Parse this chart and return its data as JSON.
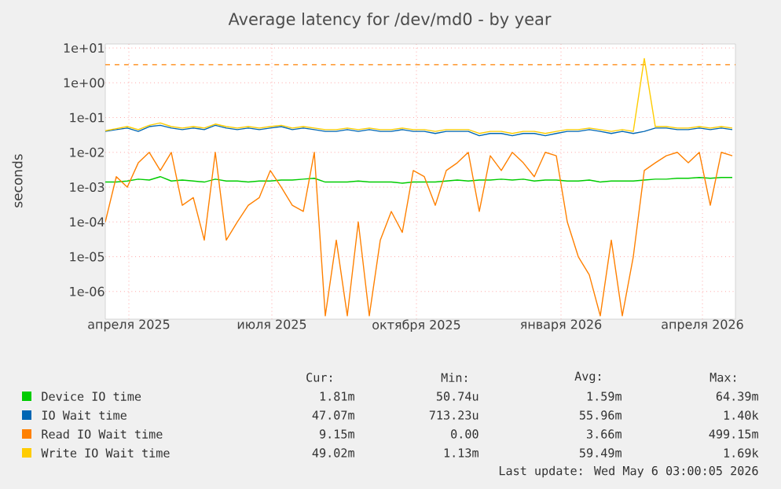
{
  "chart_data": {
    "type": "line",
    "title": "Average latency for /dev/md0 - by year",
    "ylabel": "seconds",
    "x": [
      "2025-03-17",
      "2025-03-24",
      "2025-03-31",
      "2025-04-07",
      "2025-04-14",
      "2025-04-21",
      "2025-04-28",
      "2025-05-05",
      "2025-05-12",
      "2025-05-19",
      "2025-05-26",
      "2025-06-02",
      "2025-06-09",
      "2025-06-16",
      "2025-06-23",
      "2025-06-30",
      "2025-07-07",
      "2025-07-14",
      "2025-07-21",
      "2025-07-28",
      "2025-08-04",
      "2025-08-11",
      "2025-08-18",
      "2025-08-25",
      "2025-09-01",
      "2025-09-08",
      "2025-09-15",
      "2025-09-22",
      "2025-09-29",
      "2025-10-06",
      "2025-10-13",
      "2025-10-20",
      "2025-10-27",
      "2025-11-03",
      "2025-11-10",
      "2025-11-17",
      "2025-11-24",
      "2025-12-01",
      "2025-12-08",
      "2025-12-15",
      "2025-12-22",
      "2025-12-29",
      "2026-01-05",
      "2026-01-12",
      "2026-01-19",
      "2026-01-26",
      "2026-02-02",
      "2026-02-09",
      "2026-02-16",
      "2026-02-23",
      "2026-03-02",
      "2026-03-09",
      "2026-03-16",
      "2026-03-23",
      "2026-03-30",
      "2026-04-06",
      "2026-04-13",
      "2026-04-20"
    ],
    "series": [
      {
        "name": "Device IO time",
        "color": "#00cc00",
        "values": [
          0.0014,
          0.0014,
          0.0015,
          0.0017,
          0.0016,
          0.002,
          0.0015,
          0.0016,
          0.0015,
          0.0014,
          0.0017,
          0.0015,
          0.0015,
          0.0014,
          0.0015,
          0.0015,
          0.0016,
          0.0016,
          0.0017,
          0.0018,
          0.0014,
          0.0014,
          0.0014,
          0.0015,
          0.0014,
          0.0014,
          0.0014,
          0.0013,
          0.0014,
          0.0014,
          0.0014,
          0.0015,
          0.0016,
          0.0015,
          0.0016,
          0.0016,
          0.0017,
          0.0016,
          0.0017,
          0.0015,
          0.0016,
          0.0016,
          0.0015,
          0.0015,
          0.0016,
          0.0014,
          0.0015,
          0.0015,
          0.0015,
          0.0016,
          0.0017,
          0.0017,
          0.0018,
          0.0018,
          0.0019,
          0.0018,
          0.0019,
          0.0019
        ]
      },
      {
        "name": "IO Wait time",
        "color": "#0066b3",
        "values": [
          0.04,
          0.045,
          0.05,
          0.04,
          0.055,
          0.06,
          0.05,
          0.045,
          0.05,
          0.045,
          0.06,
          0.05,
          0.045,
          0.05,
          0.045,
          0.05,
          0.055,
          0.045,
          0.05,
          0.045,
          0.04,
          0.04,
          0.045,
          0.04,
          0.045,
          0.04,
          0.04,
          0.045,
          0.04,
          0.04,
          0.035,
          0.04,
          0.04,
          0.04,
          0.03,
          0.035,
          0.035,
          0.03,
          0.035,
          0.035,
          0.03,
          0.035,
          0.04,
          0.04,
          0.045,
          0.04,
          0.035,
          0.04,
          0.035,
          0.04,
          0.05,
          0.05,
          0.045,
          0.045,
          0.05,
          0.045,
          0.05,
          0.045
        ]
      },
      {
        "name": "Read IO Wait time",
        "color": "#ff8000",
        "values": [
          0.0001,
          0.002,
          0.001,
          0.005,
          0.01,
          0.003,
          0.01,
          0.0003,
          0.0005,
          3e-05,
          0.01,
          3e-05,
          0.0001,
          0.0003,
          0.0005,
          0.003,
          0.001,
          0.0003,
          0.0002,
          0.01,
          2e-07,
          3e-05,
          2e-07,
          0.0001,
          2e-07,
          3e-05,
          0.0002,
          5e-05,
          0.003,
          0.002,
          0.0003,
          0.003,
          0.005,
          0.01,
          0.0002,
          0.008,
          0.003,
          0.01,
          0.005,
          0.002,
          0.01,
          0.008,
          0.0001,
          1e-05,
          3e-06,
          2e-07,
          3e-05,
          2e-07,
          1e-05,
          0.003,
          0.005,
          0.008,
          0.01,
          0.005,
          0.01,
          0.0003,
          0.01,
          0.008
        ]
      },
      {
        "name": "Write IO Wait time",
        "color": "#ffcc00",
        "values": [
          0.042,
          0.048,
          0.055,
          0.045,
          0.06,
          0.07,
          0.055,
          0.05,
          0.055,
          0.05,
          0.065,
          0.055,
          0.05,
          0.055,
          0.05,
          0.055,
          0.06,
          0.05,
          0.055,
          0.05,
          0.045,
          0.045,
          0.05,
          0.045,
          0.05,
          0.045,
          0.045,
          0.05,
          0.045,
          0.045,
          0.04,
          0.045,
          0.045,
          0.045,
          0.035,
          0.04,
          0.04,
          0.035,
          0.04,
          0.04,
          0.035,
          0.04,
          0.045,
          0.045,
          0.05,
          0.045,
          0.04,
          0.045,
          0.04,
          5.0,
          0.055,
          0.055,
          0.05,
          0.05,
          0.055,
          0.05,
          0.055,
          0.05
        ]
      }
    ],
    "xlim": [
      "2025-03-17",
      "2026-04-22"
    ],
    "xticks": [
      {
        "value": "2025-04-01",
        "label": "апреля 2025"
      },
      {
        "value": "2025-07-01",
        "label": "июля 2025"
      },
      {
        "value": "2025-10-01",
        "label": "октября 2025"
      },
      {
        "value": "2026-01-01",
        "label": "января 2026"
      },
      {
        "value": "2026-04-01",
        "label": "апреля 2026"
      }
    ],
    "ylim": [
      1.6e-07,
      13
    ],
    "yticks": [
      {
        "value": 1e-06,
        "label": "1e-06"
      },
      {
        "value": 1e-05,
        "label": "1e-05"
      },
      {
        "value": 0.0001,
        "label": "1e-04"
      },
      {
        "value": 0.001,
        "label": "1e-03"
      },
      {
        "value": 0.01,
        "label": "1e-02"
      },
      {
        "value": 0.1,
        "label": "1e-01"
      },
      {
        "value": 1,
        "label": "1e+00"
      },
      {
        "value": 10,
        "label": "1e+01"
      }
    ],
    "log": "y",
    "grid": true,
    "legend": "bottom",
    "marker": "none",
    "line_style": "solid",
    "ref_lines": [
      {
        "axis": "y",
        "value": 3.3,
        "color": "#ff8000",
        "line_style": "dashed"
      }
    ],
    "annotations": [
      "Cur:",
      "Min:",
      "Avg:",
      "Max:",
      "1.81m",
      "50.74u",
      "1.59m",
      "64.39m",
      "47.07m",
      "713.23u",
      "55.96m",
      "1.40k",
      "9.15m",
      "0.00",
      "3.66m",
      "499.15m",
      "49.02m",
      "1.13m",
      "59.49m",
      "1.69k",
      "Last update: Wed May  6 03:00:05 2026"
    ]
  }
}
